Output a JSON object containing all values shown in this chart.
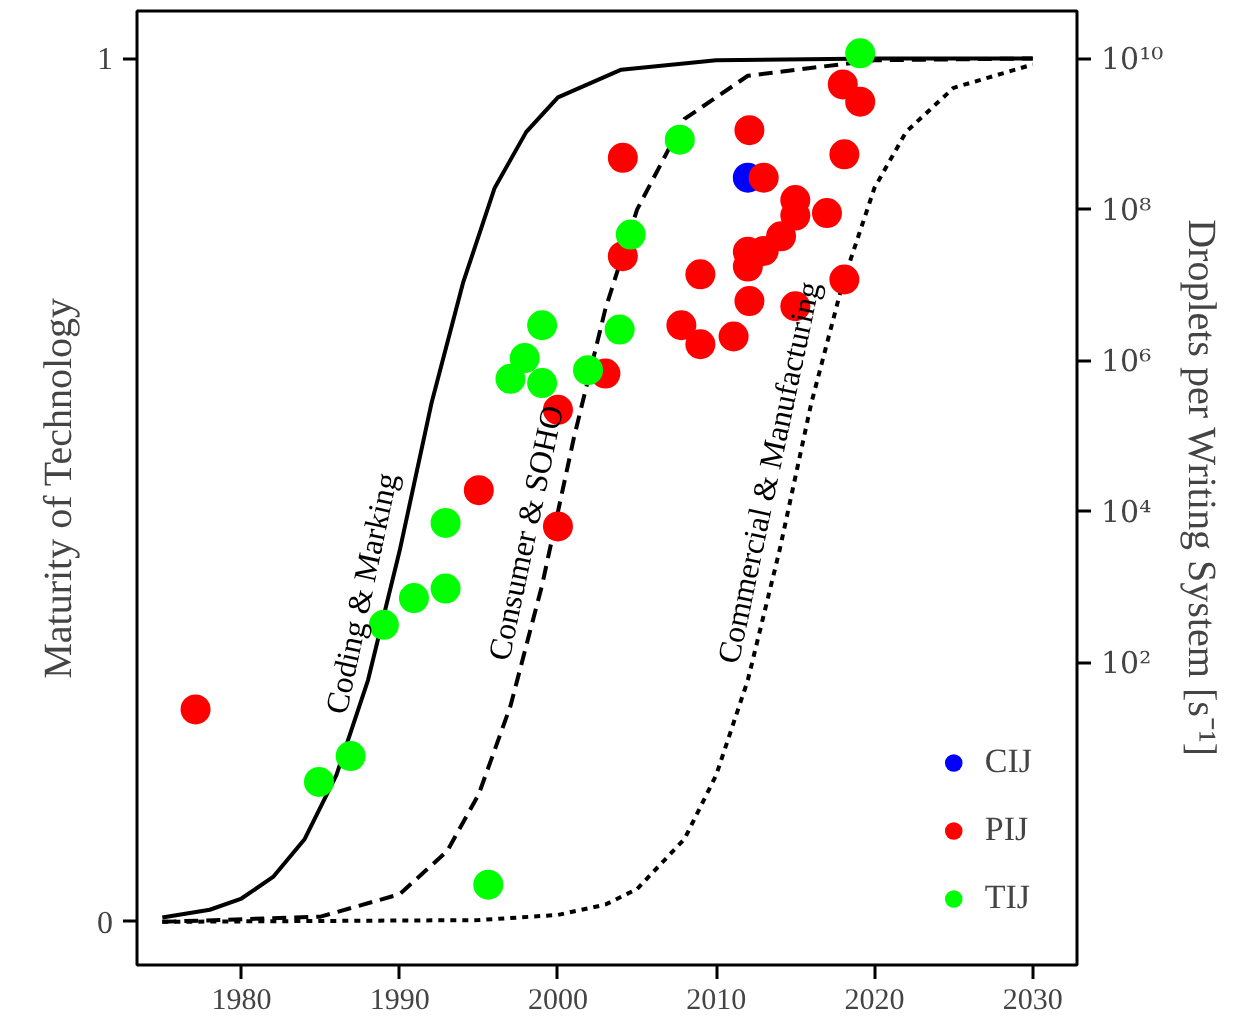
{
  "chart_data": {
    "type": "scatter",
    "ylabel": "Maturity of Technology",
    "y2label": "Droplets per Writing System [s⁻¹]",
    "xlim": [
      1973.4,
      2032.8
    ],
    "xticks": [
      1980,
      1990,
      2000,
      2010,
      2020,
      2030
    ],
    "ylim": [
      -0.05,
      1.055
    ],
    "yticks": [
      0,
      1
    ],
    "y2lim": [
      0.01,
      43000000000
    ],
    "y2ticks": [
      {
        "value": 100,
        "label": "10²"
      },
      {
        "value": 10000,
        "label": "10⁴"
      },
      {
        "value": 1000000,
        "label": "10⁶"
      },
      {
        "value": 100000000,
        "label": "10⁸"
      },
      {
        "value": 10000000000,
        "label": "10¹⁰"
      }
    ],
    "log": "y2",
    "grid": false,
    "legend": "bottom right",
    "marker": "circle",
    "series": [
      {
        "type": "line",
        "marker": "none",
        "line_style": "solid",
        "color": "#000000",
        "x": [
          1975,
          1978,
          1980,
          1982,
          1984,
          1986,
          1988,
          1990,
          1992,
          1994,
          1996,
          1998,
          2000,
          2004,
          2010,
          2020,
          2030
        ],
        "values": [
          0.005,
          0.014,
          0.027,
          0.052,
          0.096,
          0.17,
          0.28,
          0.43,
          0.6,
          0.74,
          0.85,
          0.915,
          0.955,
          0.987,
          0.998,
          1.0,
          1.0
        ]
      },
      {
        "type": "line",
        "marker": "none",
        "line_style": "dashed",
        "color": "#000000",
        "x": [
          1975,
          1985,
          1990,
          1993,
          1995,
          1997,
          1999,
          2001,
          2003,
          2005,
          2008,
          2012,
          2020,
          2030
        ],
        "values": [
          0.0,
          0.006,
          0.032,
          0.082,
          0.148,
          0.25,
          0.39,
          0.56,
          0.71,
          0.825,
          0.93,
          0.98,
          0.998,
          1.0
        ]
      },
      {
        "type": "line",
        "marker": "none",
        "line_style": "dotted",
        "color": "#000000",
        "x": [
          1975,
          1995,
          2000,
          2003,
          2005,
          2008,
          2010,
          2012,
          2014,
          2016,
          2018,
          2020,
          2022,
          2025,
          2030
        ],
        "values": [
          0.0,
          0.002,
          0.008,
          0.02,
          0.038,
          0.096,
          0.17,
          0.28,
          0.43,
          0.6,
          0.74,
          0.85,
          0.915,
          0.966,
          0.993
        ]
      },
      {
        "name": "CIJ",
        "color": "#0000ff",
        "x": [
          2012.0
        ],
        "values": [
          0.862
        ]
      },
      {
        "name": "PIJ",
        "color": "#ff0000",
        "x": [
          2004.1,
          2004.1,
          2007.8,
          2003.0,
          2000.0,
          1995.0,
          2000.0,
          1977.1,
          2018.0,
          2019.1,
          2012.1,
          2018.1,
          2013.0,
          2015.0,
          2015.0,
          2017.0,
          2014.1,
          2013.0,
          2012.0,
          2012.0,
          2009.0,
          2018.1,
          2012.1,
          2015.0,
          2009.0,
          2011.1
        ],
        "values": [
          0.885,
          0.771,
          0.691,
          0.635,
          0.593,
          0.5,
          0.458,
          0.246,
          0.97,
          0.95,
          0.917,
          0.889,
          0.862,
          0.836,
          0.818,
          0.821,
          0.794,
          0.777,
          0.776,
          0.759,
          0.75,
          0.744,
          0.719,
          0.713,
          0.669,
          0.678
        ]
      },
      {
        "name": "TIJ",
        "color": "#00ff00",
        "x": [
          2019.1,
          2007.7,
          2004.6,
          1999.0,
          1997.9,
          1997.0,
          1999.0,
          2003.9,
          2001.9,
          1992.9,
          1990.9,
          1992.9,
          1989.0,
          1986.9,
          1984.9,
          1995.6
        ],
        "values": [
          1.006,
          0.906,
          0.796,
          0.691,
          0.653,
          0.629,
          0.624,
          0.686,
          0.639,
          0.462,
          0.375,
          0.386,
          0.344,
          0.192,
          0.162,
          0.043
        ]
      }
    ],
    "annotations": [
      "Coding & Marking",
      "Consumer & SOHO",
      "Commercial & Manufacturing"
    ]
  }
}
